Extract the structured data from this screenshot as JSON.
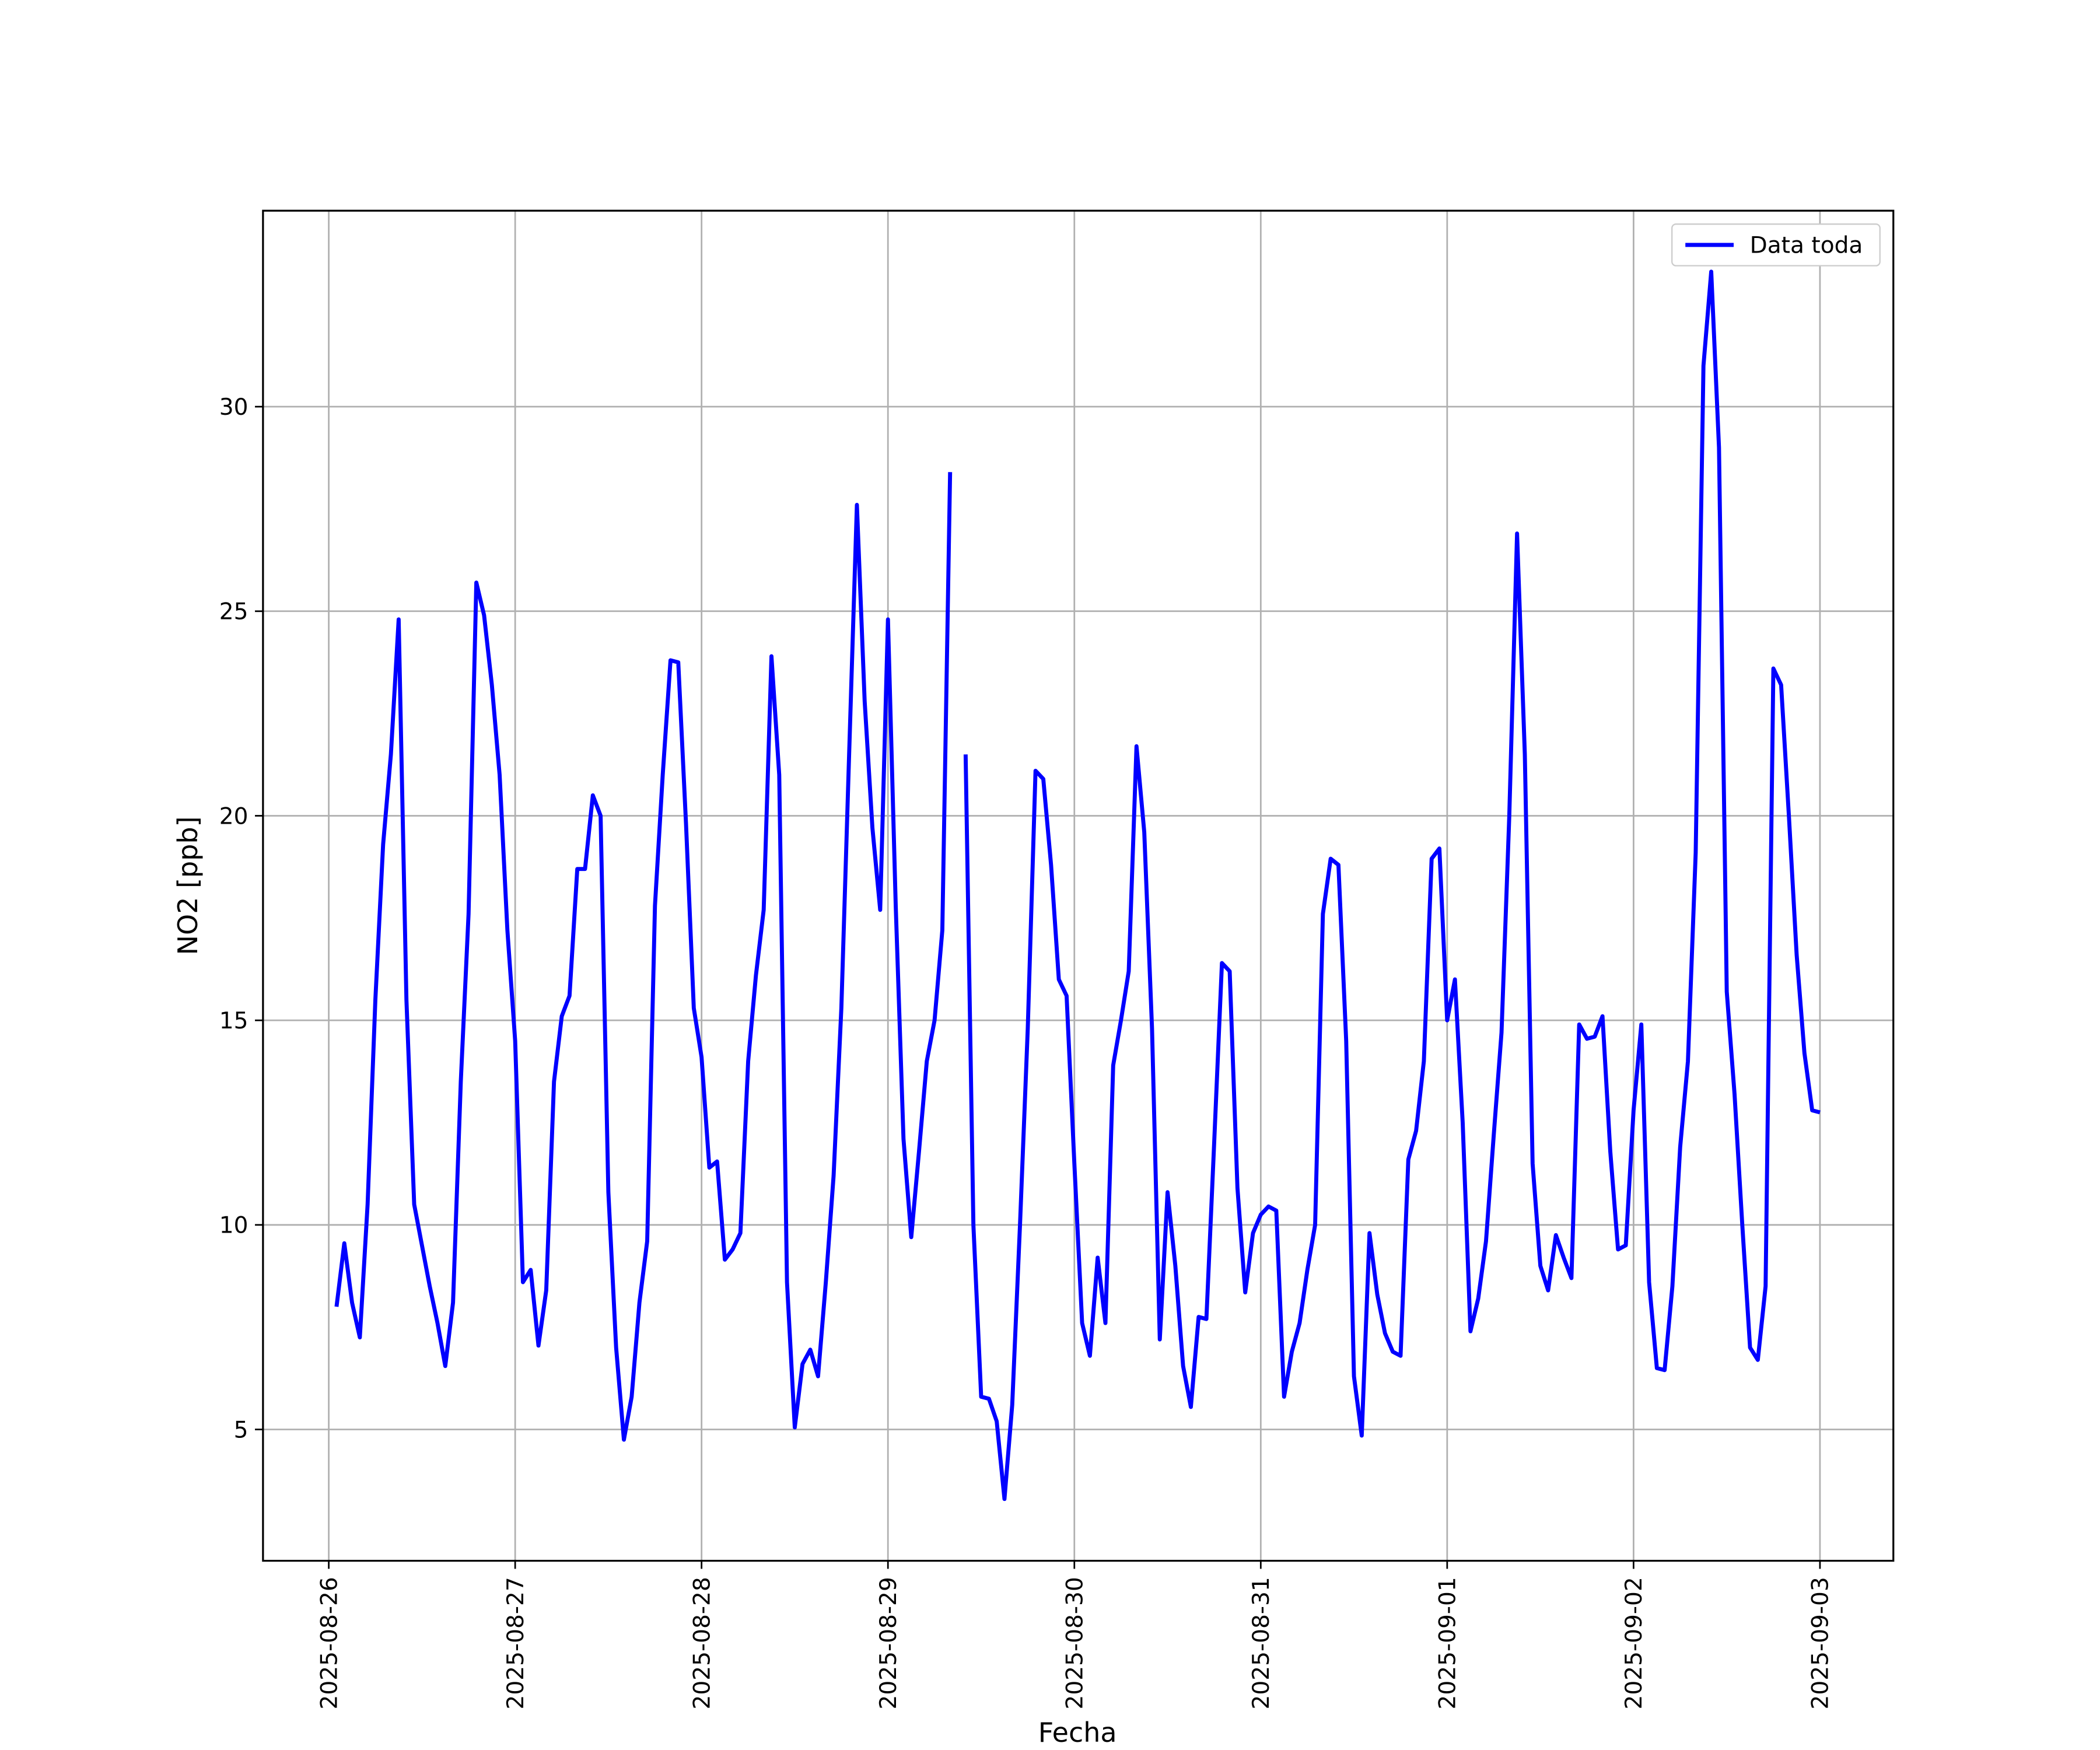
{
  "chart_data": {
    "type": "line",
    "xlabel": "Fecha",
    "ylabel": "NO2 [ppb]",
    "xlim": [
      "2025-08-25 15:32",
      "2025-09-03 09:27"
    ],
    "xticks": [
      "2025-08-26",
      "2025-08-27",
      "2025-08-28",
      "2025-08-29",
      "2025-08-30",
      "2025-08-31",
      "2025-09-01",
      "2025-09-02",
      "2025-09-03"
    ],
    "ylim": [
      1.79,
      34.79
    ],
    "yticks": [
      5,
      10,
      15,
      20,
      25,
      30
    ],
    "grid": true,
    "legend": "upper right",
    "x": [
      "2025-08-26 01:00",
      "2025-08-26 02:00",
      "2025-08-26 03:00",
      "2025-08-26 04:00",
      "2025-08-26 05:00",
      "2025-08-26 06:00",
      "2025-08-26 07:00",
      "2025-08-26 08:00",
      "2025-08-26 09:00",
      "2025-08-26 10:00",
      "2025-08-26 11:00",
      "2025-08-26 12:00",
      "2025-08-26 13:00",
      "2025-08-26 14:00",
      "2025-08-26 15:00",
      "2025-08-26 16:00",
      "2025-08-26 17:00",
      "2025-08-26 18:00",
      "2025-08-26 19:00",
      "2025-08-26 20:00",
      "2025-08-26 21:00",
      "2025-08-26 22:00",
      "2025-08-26 23:00",
      "2025-08-27 00:00",
      "2025-08-27 01:00",
      "2025-08-27 02:00",
      "2025-08-27 03:00",
      "2025-08-27 04:00",
      "2025-08-27 05:00",
      "2025-08-27 06:00",
      "2025-08-27 07:00",
      "2025-08-27 08:00",
      "2025-08-27 09:00",
      "2025-08-27 10:00",
      "2025-08-27 11:00",
      "2025-08-27 12:00",
      "2025-08-27 13:00",
      "2025-08-27 14:00",
      "2025-08-27 15:00",
      "2025-08-27 16:00",
      "2025-08-27 17:00",
      "2025-08-27 18:00",
      "2025-08-27 19:00",
      "2025-08-27 20:00",
      "2025-08-27 21:00",
      "2025-08-27 22:00",
      "2025-08-27 23:00",
      "2025-08-28 00:00",
      "2025-08-28 01:00",
      "2025-08-28 02:00",
      "2025-08-28 03:00",
      "2025-08-28 04:00",
      "2025-08-28 05:00",
      "2025-08-28 06:00",
      "2025-08-28 07:00",
      "2025-08-28 08:00",
      "2025-08-28 09:00",
      "2025-08-28 10:00",
      "2025-08-28 11:00",
      "2025-08-28 12:00",
      "2025-08-28 13:00",
      "2025-08-28 14:00",
      "2025-08-28 15:00",
      "2025-08-28 16:00",
      "2025-08-28 17:00",
      "2025-08-28 18:00",
      "2025-08-28 19:00",
      "2025-08-28 20:00",
      "2025-08-28 21:00",
      "2025-08-28 22:00",
      "2025-08-28 23:00",
      "2025-08-29 00:00",
      "2025-08-29 01:00",
      "2025-08-29 02:00",
      "2025-08-29 03:00",
      "2025-08-29 04:00",
      "2025-08-29 05:00",
      "2025-08-29 06:00",
      "2025-08-29 07:00",
      "2025-08-29 08:00",
      "2025-08-29 09:00",
      "2025-08-29 10:00",
      "2025-08-29 11:00",
      "2025-08-29 12:00",
      "2025-08-29 13:00",
      "2025-08-29 14:00",
      "2025-08-29 15:00",
      "2025-08-29 16:00",
      "2025-08-29 17:00",
      "2025-08-29 18:00",
      "2025-08-29 19:00",
      "2025-08-29 20:00",
      "2025-08-29 21:00",
      "2025-08-29 22:00",
      "2025-08-29 23:00",
      "2025-08-30 00:00",
      "2025-08-30 01:00",
      "2025-08-30 02:00",
      "2025-08-30 03:00",
      "2025-08-30 04:00",
      "2025-08-30 05:00",
      "2025-08-30 06:00",
      "2025-08-30 07:00",
      "2025-08-30 08:00",
      "2025-08-30 09:00",
      "2025-08-30 10:00",
      "2025-08-30 11:00",
      "2025-08-30 12:00",
      "2025-08-30 13:00",
      "2025-08-30 14:00",
      "2025-08-30 15:00",
      "2025-08-30 16:00",
      "2025-08-30 17:00",
      "2025-08-30 18:00",
      "2025-08-30 19:00",
      "2025-08-30 20:00",
      "2025-08-30 21:00",
      "2025-08-30 22:00",
      "2025-08-30 23:00",
      "2025-08-31 00:00",
      "2025-08-31 01:00",
      "2025-08-31 02:00",
      "2025-08-31 03:00",
      "2025-08-31 04:00",
      "2025-08-31 05:00",
      "2025-08-31 06:00",
      "2025-08-31 07:00",
      "2025-08-31 08:00",
      "2025-08-31 09:00",
      "2025-08-31 10:00",
      "2025-08-31 11:00",
      "2025-08-31 12:00",
      "2025-08-31 13:00",
      "2025-08-31 14:00",
      "2025-08-31 15:00",
      "2025-08-31 16:00",
      "2025-08-31 17:00",
      "2025-08-31 18:00",
      "2025-08-31 19:00",
      "2025-08-31 20:00",
      "2025-08-31 21:00",
      "2025-08-31 22:00",
      "2025-08-31 23:00",
      "2025-09-01 00:00",
      "2025-09-01 01:00",
      "2025-09-01 02:00",
      "2025-09-01 03:00",
      "2025-09-01 04:00",
      "2025-09-01 05:00",
      "2025-09-01 06:00",
      "2025-09-01 07:00",
      "2025-09-01 08:00",
      "2025-09-01 09:00",
      "2025-09-01 10:00",
      "2025-09-01 11:00",
      "2025-09-01 12:00",
      "2025-09-01 13:00",
      "2025-09-01 14:00",
      "2025-09-01 15:00",
      "2025-09-01 16:00",
      "2025-09-01 17:00",
      "2025-09-01 18:00",
      "2025-09-01 19:00",
      "2025-09-01 20:00",
      "2025-09-01 21:00",
      "2025-09-01 22:00",
      "2025-09-01 23:00",
      "2025-09-02 00:00",
      "2025-09-02 01:00",
      "2025-09-02 02:00",
      "2025-09-02 03:00",
      "2025-09-02 04:00",
      "2025-09-02 05:00",
      "2025-09-02 06:00",
      "2025-09-02 07:00",
      "2025-09-02 08:00",
      "2025-09-02 09:00",
      "2025-09-02 10:00",
      "2025-09-02 11:00",
      "2025-09-02 12:00",
      "2025-09-02 13:00",
      "2025-09-02 14:00",
      "2025-09-02 15:00",
      "2025-09-02 16:00",
      "2025-09-02 17:00",
      "2025-09-02 18:00",
      "2025-09-02 19:00",
      "2025-09-02 20:00",
      "2025-09-02 21:00",
      "2025-09-02 22:00",
      "2025-09-02 23:00",
      "2025-09-03 00:00"
    ],
    "series": [
      {
        "name": "Data toda",
        "color": "#0000ff",
        "values": [
          8.0,
          9.55,
          8.1,
          7.25,
          10.5,
          15.5,
          19.3,
          21.5,
          24.8,
          15.5,
          10.5,
          9.5,
          8.5,
          7.6,
          6.55,
          8.1,
          13.5,
          17.6,
          25.7,
          24.9,
          23.2,
          21.0,
          17.2,
          14.5,
          8.6,
          8.9,
          7.05,
          8.4,
          13.5,
          15.1,
          15.6,
          18.7,
          18.7,
          20.5,
          20.0,
          10.8,
          7.0,
          4.75,
          5.8,
          8.1,
          9.6,
          17.8,
          21.0,
          23.8,
          23.75,
          19.8,
          15.3,
          14.1,
          11.4,
          11.55,
          9.15,
          9.4,
          9.8,
          14.0,
          16.1,
          17.7,
          23.9,
          21.0,
          8.6,
          5.05,
          6.6,
          6.95,
          6.3,
          8.6,
          11.2,
          15.3,
          21.5,
          27.6,
          22.8,
          19.7,
          17.7,
          24.8,
          17.8,
          12.1,
          9.7,
          11.8,
          14.0,
          15.0,
          17.2,
          28.4,
          null,
          21.5,
          10.0,
          5.8,
          5.75,
          5.2,
          3.3,
          5.6,
          10.0,
          14.8,
          21.1,
          20.9,
          18.8,
          16.0,
          15.6,
          11.5,
          7.6,
          6.8,
          9.2,
          7.6,
          13.9,
          15.0,
          16.2,
          21.7,
          19.6,
          14.8,
          7.2,
          10.8,
          9.0,
          6.55,
          5.55,
          7.75,
          7.7,
          12.0,
          16.4,
          16.2,
          10.9,
          8.35,
          9.8,
          10.25,
          10.45,
          10.35,
          5.8,
          6.9,
          7.6,
          8.9,
          10.0,
          17.6,
          18.95,
          18.8,
          14.5,
          6.3,
          4.85,
          9.8,
          8.3,
          7.35,
          6.9,
          6.8,
          11.6,
          12.3,
          14.0,
          18.95,
          19.2,
          15.0,
          16.0,
          12.5,
          7.4,
          8.2,
          9.6,
          12.2,
          14.7,
          20.0,
          26.9,
          21.5,
          11.5,
          9.0,
          8.4,
          9.75,
          9.2,
          8.7,
          14.9,
          14.55,
          14.6,
          15.1,
          11.8,
          9.4,
          9.5,
          12.8,
          14.9,
          8.6,
          6.5,
          6.45,
          8.5,
          11.9,
          14.0,
          19.1,
          31.0,
          33.3,
          29.0,
          15.7,
          13.2,
          10.0,
          7.0,
          6.7,
          8.5,
          23.6,
          23.2,
          20.0,
          16.6,
          14.2,
          12.8,
          12.75
        ]
      }
    ]
  }
}
